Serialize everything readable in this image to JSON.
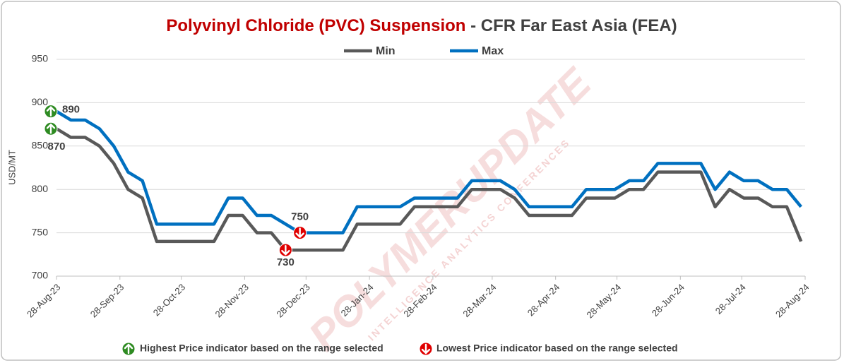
{
  "chart_data": {
    "type": "line",
    "title": "Polyvinyl Chloride (PVC) Suspension",
    "subtitle": " - CFR Far East Asia (FEA)",
    "y_label": "USD/MT",
    "watermark": "POLYMERUPDATE",
    "watermark_sub": "INTELLIGENCE   ANALYTICS   CONFERENCES",
    "high_note": "Highest Price indicator based on the range selected",
    "low_note": "Lowest Price indicator based on the range selected",
    "x": [
      "2023-08-28",
      "2023-09-04",
      "2023-09-11",
      "2023-09-18",
      "2023-09-25",
      "2023-10-02",
      "2023-10-09",
      "2023-10-16",
      "2023-10-23",
      "2023-10-30",
      "2023-11-06",
      "2023-11-13",
      "2023-11-20",
      "2023-11-27",
      "2023-12-04",
      "2023-12-11",
      "2023-12-18",
      "2023-12-25",
      "2024-01-01",
      "2024-01-08",
      "2024-01-15",
      "2024-01-22",
      "2024-01-29",
      "2024-02-05",
      "2024-02-12",
      "2024-02-19",
      "2024-02-26",
      "2024-03-04",
      "2024-03-11",
      "2024-03-18",
      "2024-03-25",
      "2024-04-01",
      "2024-04-08",
      "2024-04-15",
      "2024-04-22",
      "2024-04-29",
      "2024-05-06",
      "2024-05-13",
      "2024-05-20",
      "2024-05-27",
      "2024-06-03",
      "2024-06-10",
      "2024-06-17",
      "2024-06-24",
      "2024-07-01",
      "2024-07-08",
      "2024-07-15",
      "2024-07-22",
      "2024-07-29",
      "2024-08-05",
      "2024-08-12",
      "2024-08-19",
      "2024-08-26"
    ],
    "series": [
      {
        "name": "Min",
        "color": "#595959",
        "values": [
          870,
          860,
          860,
          850,
          830,
          800,
          790,
          740,
          740,
          740,
          740,
          740,
          770,
          770,
          750,
          750,
          730,
          730,
          730,
          730,
          730,
          760,
          760,
          760,
          760,
          780,
          780,
          780,
          780,
          800,
          800,
          800,
          790,
          770,
          770,
          770,
          770,
          790,
          790,
          790,
          800,
          800,
          820,
          820,
          820,
          820,
          780,
          800,
          790,
          790,
          780,
          780,
          740
        ]
      },
      {
        "name": "Max",
        "color": "#0070c0",
        "values": [
          890,
          880,
          880,
          870,
          850,
          820,
          810,
          760,
          760,
          760,
          760,
          760,
          790,
          790,
          770,
          770,
          760,
          750,
          750,
          750,
          750,
          780,
          780,
          780,
          780,
          790,
          790,
          790,
          790,
          810,
          810,
          810,
          800,
          780,
          780,
          780,
          780,
          800,
          800,
          800,
          810,
          810,
          830,
          830,
          830,
          830,
          800,
          820,
          810,
          810,
          800,
          800,
          780
        ]
      }
    ],
    "xlim": [
      "2023-08-28",
      "2024-08-28"
    ],
    "xticks": [
      {
        "value": "2023-08-28",
        "label": "28-Aug-23"
      },
      {
        "value": "2023-09-28",
        "label": "28-Sep-23"
      },
      {
        "value": "2023-10-28",
        "label": "28-Oct-23"
      },
      {
        "value": "2023-11-28",
        "label": "28-Nov-23"
      },
      {
        "value": "2023-12-28",
        "label": "28-Dec-23"
      },
      {
        "value": "2024-01-28",
        "label": "28-Jan-24"
      },
      {
        "value": "2024-02-28",
        "label": "28-Feb-24"
      },
      {
        "value": "2024-03-28",
        "label": "28-Mar-24"
      },
      {
        "value": "2024-04-28",
        "label": "28-Apr-24"
      },
      {
        "value": "2024-05-28",
        "label": "28-May-24"
      },
      {
        "value": "2024-06-28",
        "label": "28-Jun-24"
      },
      {
        "value": "2024-07-28",
        "label": "28-Jul-24"
      },
      {
        "value": "2024-08-28",
        "label": "28-Aug-24"
      }
    ],
    "ylim": [
      700,
      950
    ],
    "yticks": [
      700,
      750,
      800,
      850,
      900,
      950
    ],
    "grid": true
  }
}
